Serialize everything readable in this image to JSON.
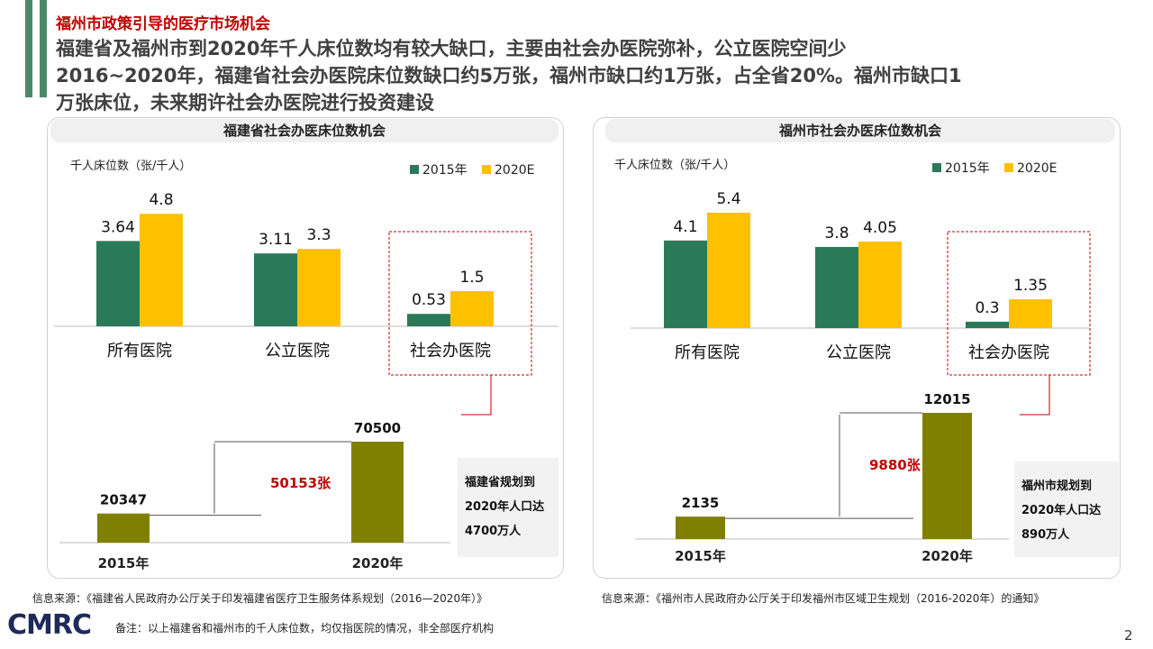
{
  "header": {
    "subtitle": "福州市政策引导的医疗市场机会",
    "line1": "福建省及福州市到2020年千人床位数均有较大缺口，主要由社会办医院弥补，公立医院空间少",
    "line2": "2016~2020年，福建省社会办医院床位数缺口约5万张，福州市缺口约1万张，占全省20%。福州市缺口1",
    "line3": "万张床位，未来期许社会办医院进行投资建设"
  },
  "colors": {
    "s2015": "#2a7a5a",
    "s2020": "#ffc000",
    "bottom": "#808000",
    "accent": "#c00000"
  },
  "chart_data": [
    {
      "type": "bar",
      "title": "福建省社会办医床位数机会",
      "ylabel": "千人床位数（张/千人）",
      "categories": [
        "所有医院",
        "公立医院",
        "社会办医院"
      ],
      "series": [
        {
          "name": "2015年",
          "values": [
            3.64,
            3.11,
            0.53
          ]
        },
        {
          "name": "2020E",
          "values": [
            4.8,
            3.3,
            1.5
          ]
        }
      ],
      "bottom": {
        "categories": [
          "2015年",
          "2020年"
        ],
        "values": [
          20347,
          70500
        ],
        "gap_label": "50153张"
      },
      "note": [
        "福建省规划到",
        "2020年人口达",
        "4700万人"
      ]
    },
    {
      "type": "bar",
      "title": "福州市社会办医床位数机会",
      "ylabel": "千人床位数（张/千人）",
      "categories": [
        "所有医院",
        "公立医院",
        "社会办医院"
      ],
      "series": [
        {
          "name": "2015年",
          "values": [
            4.1,
            3.8,
            0.3
          ]
        },
        {
          "name": "2020E",
          "values": [
            5.4,
            4.05,
            1.35
          ]
        }
      ],
      "bottom": {
        "categories": [
          "2015年",
          "2020年"
        ],
        "values": [
          2135,
          12015
        ],
        "gap_label": "9880张"
      },
      "note": [
        "福州市规划到",
        "2020年人口达",
        "890万人"
      ]
    }
  ],
  "footer": {
    "source_left": "信息来源：《福建省人民政府办公厅关于印发福建省医疗卫生服务体系规划（2016—2020年）》",
    "source_right": "信息来源：《福州市人民政府办公厅关于印发福州市区域卫生规划（2016-2020年）的通知》",
    "remark": "备注：以上福建省和福州市的千人床位数，均仅指医院的情况，非全部医疗机构",
    "logo": "CMRC",
    "page": "2"
  }
}
